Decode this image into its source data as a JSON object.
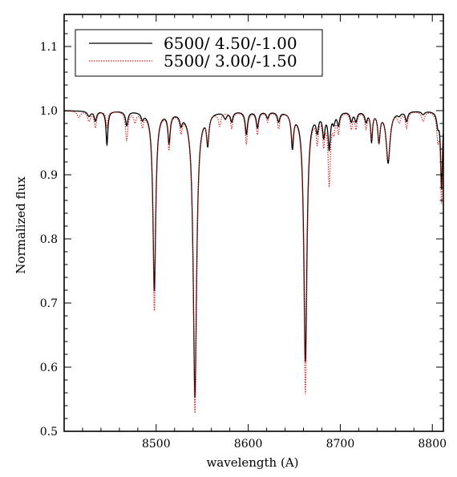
{
  "chart_data": {
    "type": "line",
    "title": "",
    "xlabel": "wavelength (A)",
    "ylabel": "Normalized flux",
    "xlim": [
      8400,
      8812
    ],
    "ylim": [
      0.5,
      1.15
    ],
    "xticks": [
      8500,
      8600,
      8700,
      8800
    ],
    "xtick_labels": [
      "8500",
      "8600",
      "8700",
      "8800"
    ],
    "yticks": [
      0.5,
      0.6,
      0.7,
      0.8,
      0.9,
      1.0,
      1.1
    ],
    "ytick_labels": [
      "0.5",
      "0.6",
      "0.7",
      "0.8",
      "0.9",
      "1.0",
      "1.1"
    ],
    "legend_position": "top-left",
    "grid": false,
    "series": [
      {
        "name": "6500/ 4.50/-1.00",
        "color": "#000000",
        "style": "solid",
        "continuum": 1.0,
        "lines": [
          [
            8427,
            0.992,
            2
          ],
          [
            8434,
            0.985,
            1.5
          ],
          [
            8446.5,
            0.948,
            1.2
          ],
          [
            8468,
            0.978,
            1.5
          ],
          [
            8485,
            0.99,
            1.5
          ],
          [
            8498.0,
            0.72,
            1.8
          ],
          [
            8514,
            0.955,
            1.5
          ],
          [
            8527,
            0.985,
            1.5
          ],
          [
            8542.1,
            0.555,
            2.2
          ],
          [
            8556,
            0.955,
            1.5
          ],
          [
            8575,
            0.99,
            2
          ],
          [
            8582,
            0.985,
            1.5
          ],
          [
            8598,
            0.965,
            1.5
          ],
          [
            8610,
            0.975,
            1.5
          ],
          [
            8621,
            0.99,
            1.5
          ],
          [
            8633,
            0.985,
            1.5
          ],
          [
            8648,
            0.948,
            1.5
          ],
          [
            8662.1,
            0.61,
            2.0
          ],
          [
            8675,
            0.975,
            1.5
          ],
          [
            8682,
            0.965,
            1.5
          ],
          [
            8688,
            0.945,
            1.5
          ],
          [
            8693,
            0.985,
            1.5
          ],
          [
            8698,
            0.98,
            1.5
          ],
          [
            8712,
            0.985,
            1.5
          ],
          [
            8717,
            0.985,
            1.5
          ],
          [
            8728,
            0.985,
            1.5
          ],
          [
            8734,
            0.955,
            1.2
          ],
          [
            8742,
            0.955,
            1.5
          ],
          [
            8752,
            0.92,
            2.5
          ],
          [
            8764,
            0.995,
            2
          ],
          [
            8772,
            0.985,
            1.5
          ],
          [
            8790,
            0.995,
            2
          ],
          [
            8806,
            0.98,
            1.5
          ],
          [
            8810,
            0.88,
            1.2
          ]
        ]
      },
      {
        "name": "5500/ 3.00/-1.50",
        "color": "#cc2222",
        "style": "dotted",
        "continuum": 1.0,
        "lines": [
          [
            8416,
            0.99,
            2
          ],
          [
            8427,
            0.985,
            2
          ],
          [
            8434,
            0.975,
            1.5
          ],
          [
            8446.5,
            0.975,
            1.2
          ],
          [
            8468,
            0.955,
            1.5
          ],
          [
            8477,
            0.985,
            1.5
          ],
          [
            8485,
            0.98,
            1.5
          ],
          [
            8498.0,
            0.69,
            1.8
          ],
          [
            8514,
            0.945,
            1.5
          ],
          [
            8527,
            0.975,
            1.5
          ],
          [
            8542.1,
            0.53,
            2.2
          ],
          [
            8556,
            0.96,
            1.5
          ],
          [
            8569,
            0.98,
            1.5
          ],
          [
            8582,
            0.975,
            1.5
          ],
          [
            8598,
            0.95,
            1.5
          ],
          [
            8610,
            0.965,
            1.5
          ],
          [
            8621,
            0.985,
            1.5
          ],
          [
            8633,
            0.975,
            1.5
          ],
          [
            8648,
            0.96,
            1.5
          ],
          [
            8662.1,
            0.56,
            2.0
          ],
          [
            8675,
            0.96,
            1.5
          ],
          [
            8682,
            0.955,
            1.5
          ],
          [
            8688,
            0.89,
            1.5
          ],
          [
            8693,
            0.975,
            1.5
          ],
          [
            8698,
            0.97,
            1.5
          ],
          [
            8712,
            0.975,
            1.5
          ],
          [
            8717,
            0.975,
            1.5
          ],
          [
            8728,
            0.975,
            1.5
          ],
          [
            8734,
            0.96,
            1.2
          ],
          [
            8742,
            0.955,
            1.5
          ],
          [
            8752,
            0.925,
            2.5
          ],
          [
            8764,
            0.985,
            2
          ],
          [
            8772,
            0.975,
            1.5
          ],
          [
            8790,
            0.985,
            2
          ],
          [
            8806,
            0.96,
            1.5
          ],
          [
            8810,
            0.86,
            1.2
          ]
        ]
      }
    ]
  }
}
